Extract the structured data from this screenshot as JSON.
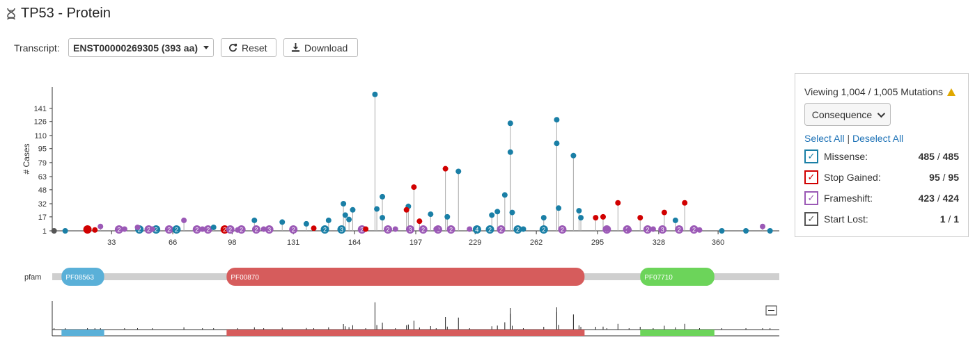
{
  "header": {
    "title": "TP53 - Protein"
  },
  "toolbar": {
    "transcript_label": "Transcript:",
    "transcript_value": "ENST00000269305 (393 aa)",
    "reset_label": "Reset",
    "download_label": "Download"
  },
  "legend": {
    "viewing_text": "Viewing 1,004 / 1,005 Mutations",
    "dropdown_label": "Consequence",
    "select_all": "Select All",
    "separator": "|",
    "deselect_all": "Deselect All",
    "items": [
      {
        "name": "Missense:",
        "shown": "485",
        "total": "485",
        "color": "#1a7fa6"
      },
      {
        "name": "Stop Gained:",
        "shown": "95",
        "total": "95",
        "color": "#d10000"
      },
      {
        "name": "Frameshift:",
        "shown": "423",
        "total": "424",
        "color": "#9b59b6"
      },
      {
        "name": "Start Lost:",
        "shown": "1",
        "total": "1",
        "color": "#555555"
      }
    ]
  },
  "chart_data": {
    "type": "lollipop",
    "ylabel": "# Cases",
    "yticks": [
      "1",
      "17",
      "32",
      "48",
      "63",
      "79",
      "95",
      "110",
      "126",
      "141"
    ],
    "xticks": [
      "33",
      "66",
      "98",
      "131",
      "164",
      "197",
      "229",
      "262",
      "295",
      "328",
      "360"
    ],
    "xdomain": [
      1,
      393
    ],
    "ydomain": [
      1,
      156
    ],
    "track_label": "pfam",
    "domains": [
      {
        "name": "PF08563",
        "start": 6,
        "end": 29,
        "color": "#5ab0d8"
      },
      {
        "name": "PF00870",
        "start": 95,
        "end": 288,
        "color": "#d65c5c"
      },
      {
        "name": "PF07710",
        "start": 318,
        "end": 358,
        "color": "#6cd45a"
      }
    ],
    "mutations": [
      {
        "pos": 175,
        "cases": 157,
        "type": "Missense"
      },
      {
        "pos": 273,
        "cases": 128,
        "type": "Missense"
      },
      {
        "pos": 248,
        "cases": 124,
        "type": "Missense"
      },
      {
        "pos": 273,
        "cases": 101,
        "type": "Missense"
      },
      {
        "pos": 248,
        "cases": 91,
        "type": "Missense"
      },
      {
        "pos": 282,
        "cases": 87,
        "type": "Missense"
      },
      {
        "pos": 213,
        "cases": 72,
        "type": "Stop Gained"
      },
      {
        "pos": 220,
        "cases": 69,
        "type": "Missense"
      },
      {
        "pos": 196,
        "cases": 51,
        "type": "Stop Gained"
      },
      {
        "pos": 179,
        "cases": 40,
        "type": "Missense"
      },
      {
        "pos": 245,
        "cases": 42,
        "type": "Missense"
      },
      {
        "pos": 306,
        "cases": 33,
        "type": "Stop Gained"
      },
      {
        "pos": 342,
        "cases": 33,
        "type": "Stop Gained"
      },
      {
        "pos": 158,
        "cases": 32,
        "type": "Missense"
      },
      {
        "pos": 193,
        "cases": 29,
        "type": "Missense"
      },
      {
        "pos": 176,
        "cases": 26,
        "type": "Missense"
      },
      {
        "pos": 163,
        "cases": 25,
        "type": "Missense"
      },
      {
        "pos": 274,
        "cases": 27,
        "type": "Missense"
      },
      {
        "pos": 285,
        "cases": 24,
        "type": "Missense"
      },
      {
        "pos": 249,
        "cases": 22,
        "type": "Missense"
      },
      {
        "pos": 192,
        "cases": 25,
        "type": "Stop Gained"
      },
      {
        "pos": 331,
        "cases": 22,
        "type": "Stop Gained"
      },
      {
        "pos": 241,
        "cases": 23,
        "type": "Missense"
      },
      {
        "pos": 205,
        "cases": 20,
        "type": "Missense"
      },
      {
        "pos": 298,
        "cases": 17,
        "type": "Stop Gained"
      },
      {
        "pos": 294,
        "cases": 16,
        "type": "Stop Gained"
      },
      {
        "pos": 318,
        "cases": 16,
        "type": "Stop Gained"
      },
      {
        "pos": 238,
        "cases": 19,
        "type": "Missense"
      },
      {
        "pos": 266,
        "cases": 16,
        "type": "Missense"
      },
      {
        "pos": 159,
        "cases": 19,
        "type": "Missense"
      },
      {
        "pos": 179,
        "cases": 16,
        "type": "Missense"
      },
      {
        "pos": 286,
        "cases": 16,
        "type": "Missense"
      },
      {
        "pos": 214,
        "cases": 17,
        "type": "Missense"
      },
      {
        "pos": 337,
        "cases": 13,
        "type": "Missense"
      },
      {
        "pos": 110,
        "cases": 13,
        "type": "Missense"
      },
      {
        "pos": 72,
        "cases": 13,
        "type": "Frameshift"
      },
      {
        "pos": 199,
        "cases": 12,
        "type": "Stop Gained"
      },
      {
        "pos": 150,
        "cases": 13,
        "type": "Missense"
      },
      {
        "pos": 125,
        "cases": 11,
        "type": "Missense"
      },
      {
        "pos": 161,
        "cases": 14,
        "type": "Missense"
      },
      {
        "pos": 138,
        "cases": 9,
        "type": "Missense"
      },
      {
        "pos": 27,
        "cases": 6,
        "type": "Frameshift"
      },
      {
        "pos": 47,
        "cases": 5,
        "type": "Frameshift"
      },
      {
        "pos": 384,
        "cases": 6,
        "type": "Frameshift"
      },
      {
        "pos": 88,
        "cases": 5,
        "type": "Missense"
      },
      {
        "pos": 20,
        "cases": 2,
        "type": "Stop Gained"
      },
      {
        "pos": 24,
        "cases": 2,
        "type": "Stop Gained"
      },
      {
        "pos": 2,
        "cases": 1,
        "type": "Start Lost"
      },
      {
        "pos": 8,
        "cases": 1,
        "type": "Missense"
      },
      {
        "pos": 40,
        "cases": 3,
        "type": "Frameshift"
      },
      {
        "pos": 55,
        "cases": 3,
        "type": "Frameshift"
      },
      {
        "pos": 82,
        "cases": 3,
        "type": "Frameshift"
      },
      {
        "pos": 101,
        "cases": 2,
        "type": "Frameshift"
      },
      {
        "pos": 115,
        "cases": 3,
        "type": "Frameshift"
      },
      {
        "pos": 142,
        "cases": 4,
        "type": "Stop Gained"
      },
      {
        "pos": 170,
        "cases": 3,
        "type": "Stop Gained"
      },
      {
        "pos": 186,
        "cases": 3,
        "type": "Frameshift"
      },
      {
        "pos": 208,
        "cases": 3,
        "type": "Frameshift"
      },
      {
        "pos": 226,
        "cases": 3,
        "type": "Frameshift"
      },
      {
        "pos": 255,
        "cases": 3,
        "type": "Missense"
      },
      {
        "pos": 300,
        "cases": 3,
        "type": "Frameshift"
      },
      {
        "pos": 312,
        "cases": 2,
        "type": "Frameshift"
      },
      {
        "pos": 325,
        "cases": 3,
        "type": "Frameshift"
      },
      {
        "pos": 350,
        "cases": 2,
        "type": "Frameshift"
      },
      {
        "pos": 362,
        "cases": 1,
        "type": "Missense"
      },
      {
        "pos": 375,
        "cases": 1,
        "type": "Missense"
      },
      {
        "pos": 388,
        "cases": 1,
        "type": "Missense"
      }
    ],
    "bubble_labels": [
      {
        "pos": 20,
        "text": "2",
        "type": "Stop Gained"
      },
      {
        "pos": 37,
        "text": "2",
        "type": "Frameshift"
      },
      {
        "pos": 48,
        "text": "2",
        "type": "Missense"
      },
      {
        "pos": 53,
        "text": "2",
        "type": "Frameshift"
      },
      {
        "pos": 57,
        "text": "2",
        "type": "Missense"
      },
      {
        "pos": 64,
        "text": "2",
        "type": "Frameshift"
      },
      {
        "pos": 68,
        "text": "2",
        "type": "Missense"
      },
      {
        "pos": 79,
        "text": "2",
        "type": "Frameshift"
      },
      {
        "pos": 85,
        "text": "2",
        "type": "Frameshift"
      },
      {
        "pos": 94,
        "text": "2",
        "type": "Stop Gained"
      },
      {
        "pos": 97,
        "text": "2",
        "type": "Frameshift"
      },
      {
        "pos": 103,
        "text": "2",
        "type": "Frameshift"
      },
      {
        "pos": 111,
        "text": "2",
        "type": "Frameshift"
      },
      {
        "pos": 118,
        "text": "3",
        "type": "Frameshift"
      },
      {
        "pos": 131,
        "text": "2",
        "type": "Frameshift"
      },
      {
        "pos": 148,
        "text": "2",
        "type": "Missense"
      },
      {
        "pos": 157,
        "text": "3",
        "type": "Missense"
      },
      {
        "pos": 168,
        "text": "2",
        "type": "Frameshift"
      },
      {
        "pos": 182,
        "text": "2",
        "type": "Frameshift"
      },
      {
        "pos": 194,
        "text": "3",
        "type": "Frameshift"
      },
      {
        "pos": 201,
        "text": "2",
        "type": "Frameshift"
      },
      {
        "pos": 209,
        "text": "2",
        "type": "Frameshift"
      },
      {
        "pos": 216,
        "text": "2",
        "type": "Frameshift"
      },
      {
        "pos": 230,
        "text": "4",
        "type": "Missense"
      },
      {
        "pos": 237,
        "text": "2",
        "type": "Missense"
      },
      {
        "pos": 243,
        "text": "2",
        "type": "Frameshift"
      },
      {
        "pos": 252,
        "text": "2",
        "type": "Missense"
      },
      {
        "pos": 266,
        "text": "2",
        "type": "Missense"
      },
      {
        "pos": 276,
        "text": "2",
        "type": "Frameshift"
      },
      {
        "pos": 300,
        "text": "2",
        "type": "Frameshift"
      },
      {
        "pos": 311,
        "text": "2",
        "type": "Frameshift"
      },
      {
        "pos": 322,
        "text": "2",
        "type": "Frameshift"
      },
      {
        "pos": 330,
        "text": "3",
        "type": "Frameshift"
      },
      {
        "pos": 339,
        "text": "2",
        "type": "Frameshift"
      },
      {
        "pos": 347,
        "text": "2",
        "type": "Frameshift"
      }
    ],
    "overview_histogram_note": "mutation density strip mirrors main plot",
    "type_colors": {
      "Missense": "#1a7fa6",
      "Stop Gained": "#d10000",
      "Frameshift": "#9b59b6",
      "Start Lost": "#555555"
    }
  }
}
